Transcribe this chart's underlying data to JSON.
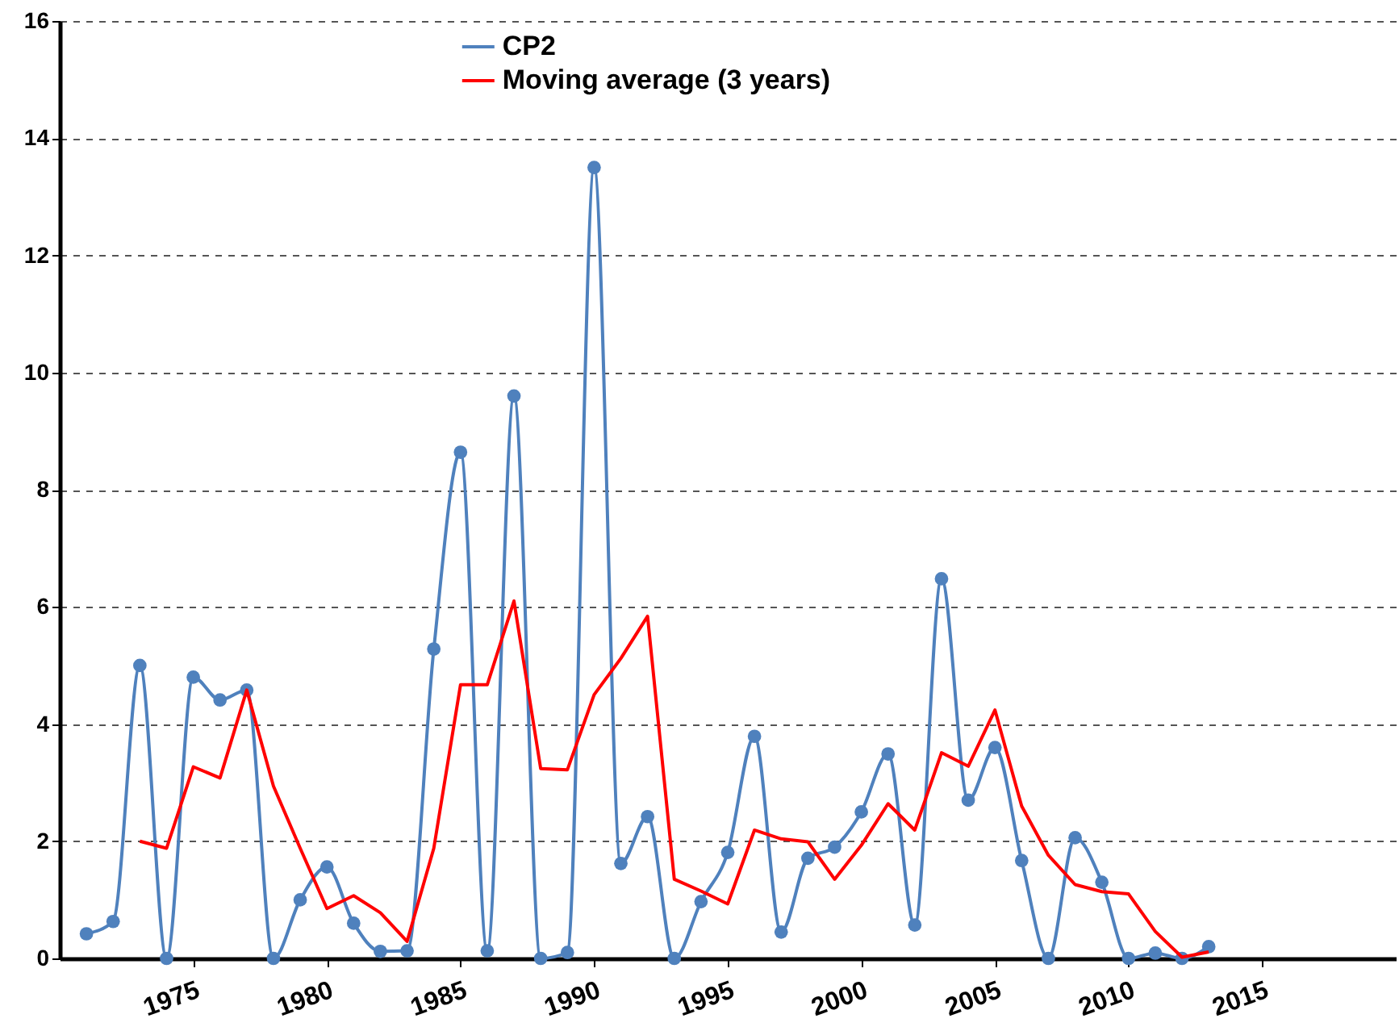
{
  "chart_data": {
    "type": "line",
    "x": [
      1971,
      1972,
      1973,
      1974,
      1975,
      1976,
      1977,
      1978,
      1979,
      1980,
      1981,
      1982,
      1983,
      1984,
      1985,
      1986,
      1987,
      1988,
      1989,
      1990,
      1991,
      1992,
      1993,
      1994,
      1995,
      1996,
      1997,
      1998,
      1999,
      2000,
      2001,
      2002,
      2003,
      2004,
      2005,
      2006,
      2007,
      2008,
      2009,
      2010,
      2011,
      2012,
      2013
    ],
    "series": [
      {
        "name": "CP2",
        "color": "#4f81bd",
        "marker": "circle",
        "values": [
          0.42,
          0.63,
          5.0,
          0,
          4.8,
          4.41,
          4.58,
          0,
          1.0,
          1.56,
          0.6,
          0.12,
          0.13,
          5.28,
          8.64,
          0.13,
          9.6,
          0,
          0.1,
          13.5,
          1.62,
          2.42,
          0,
          0.97,
          1.81,
          3.79,
          0.45,
          1.71,
          1.9,
          2.5,
          3.49,
          0.57,
          6.48,
          2.7,
          3.6,
          1.67,
          0,
          2.06,
          1.3,
          0,
          0.09,
          0,
          0.2
        ]
      },
      {
        "name": "Moving average (3 years)",
        "color": "#ff0000",
        "marker": "none",
        "x": [
          1973,
          1974,
          1975,
          1976,
          1977,
          1978,
          1979,
          1980,
          1981,
          1982,
          1983,
          1984,
          1985,
          1986,
          1987,
          1988,
          1989,
          1990,
          1991,
          1992,
          1993,
          1994,
          1995,
          1996,
          1997,
          1998,
          1999,
          2000,
          2001,
          2002,
          2003,
          2004,
          2005,
          2006,
          2007,
          2008,
          2009,
          2010,
          2011,
          2012,
          2013
        ],
        "values": [
          2.0,
          1.88,
          3.27,
          3.08,
          4.58,
          2.94,
          1.88,
          0.85,
          1.07,
          0.78,
          0.29,
          1.88,
          4.67,
          4.67,
          6.1,
          3.24,
          3.22,
          4.5,
          5.12,
          5.84,
          1.35,
          1.15,
          0.93,
          2.19,
          2.04,
          1.99,
          1.35,
          1.93,
          2.64,
          2.19,
          3.51,
          3.28,
          4.24,
          2.6,
          1.76,
          1.26,
          1.14,
          1.1,
          0.46,
          0.02,
          0.11
        ]
      }
    ],
    "xlim": [
      1970,
      2020
    ],
    "xticks": [
      1975,
      1980,
      1985,
      1990,
      1995,
      2000,
      2005,
      2010,
      2015
    ],
    "ylim": [
      0,
      16
    ],
    "yticks": [
      0,
      2,
      4,
      6,
      8,
      10,
      12,
      14,
      16
    ],
    "grid": "y",
    "legend": "top"
  }
}
